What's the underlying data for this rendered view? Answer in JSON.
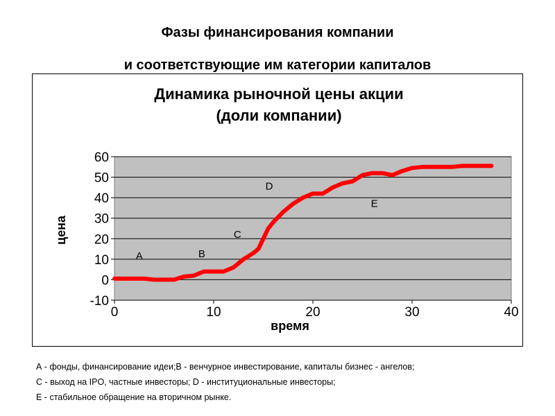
{
  "page": {
    "title_line1": "Фазы финансирования компании",
    "title_line2": "и соответствующие им категории капиталов"
  },
  "chart_data": {
    "type": "line",
    "title_line1": "Динамика рыночной цены акции",
    "title_line2": "(доли компании)",
    "xlabel": "время",
    "ylabel": "цена",
    "xlim": [
      0,
      40
    ],
    "ylim": [
      -10,
      60
    ],
    "xticks": [
      "0",
      "10",
      "20",
      "30",
      "40"
    ],
    "yticks": [
      "-10",
      "0",
      "10",
      "20",
      "30",
      "40",
      "50",
      "60"
    ],
    "grid": "horizontal",
    "plot_background": "#c0c0c0",
    "series": [
      {
        "color": "#ff0000",
        "x": [
          0,
          3,
          4,
          6,
          7,
          8,
          9,
          10,
          11,
          12,
          13,
          14,
          14.5,
          15,
          15.5,
          16,
          17,
          18,
          19,
          20,
          21,
          22,
          23,
          24,
          25,
          26,
          27,
          28,
          29,
          30,
          31,
          32,
          33,
          34,
          35,
          36,
          37,
          38
        ],
        "y": [
          0.5,
          0.5,
          0,
          0,
          1.5,
          2,
          4,
          4,
          4,
          6,
          10,
          13,
          15,
          20,
          25,
          28,
          33,
          37,
          40,
          42,
          42,
          45,
          47,
          48,
          51,
          52,
          52,
          51,
          53,
          54.5,
          55,
          55,
          55,
          55,
          55.5,
          55.5,
          55.5,
          55.5
        ]
      }
    ],
    "annotations": [
      {
        "text": "A",
        "x": 2.5,
        "y": 10
      },
      {
        "text": "B",
        "x": 8.8,
        "y": 11
      },
      {
        "text": "C",
        "x": 12.4,
        "y": 20.5
      },
      {
        "text": "D",
        "x": 15.6,
        "y": 44
      },
      {
        "text": "E",
        "x": 26.2,
        "y": 35.5
      }
    ]
  },
  "legend": {
    "line1": "А  - фонды, финансирование идеи;В - венчурное инвестирование, капиталы бизнес - ангелов;",
    "line2": "С - выход на IPO, частные инвесторы; D - институциональные инвесторы;",
    "line3": "Е - стабильное обращение на вторичном рынке."
  }
}
